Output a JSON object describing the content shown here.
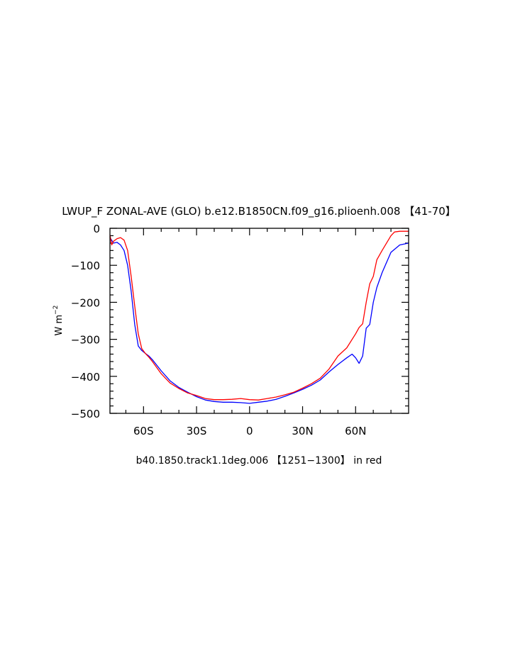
{
  "chart_data": {
    "type": "line",
    "title": "LWUP_F ZONAL-AVE (GLO) b.e12.B1850CN.f09_g16.plioenh.008 【41-70】",
    "ylabel_main": "W m",
    "ylabel_exp": "−2",
    "caption": "b40.1850.track1.1deg.006 【1251−1300】 in red",
    "xlim": [
      -79,
      90
    ],
    "ylim": [
      -500,
      0
    ],
    "x_ticks": [
      {
        "value": -60,
        "label": "60S"
      },
      {
        "value": -30,
        "label": "30S"
      },
      {
        "value": 0,
        "label": "0"
      },
      {
        "value": 30,
        "label": "30N"
      },
      {
        "value": 60,
        "label": "60N"
      }
    ],
    "y_ticks": [
      {
        "value": 0,
        "label": "0"
      },
      {
        "value": -100,
        "label": "−100"
      },
      {
        "value": -200,
        "label": "−200"
      },
      {
        "value": -300,
        "label": "−300"
      },
      {
        "value": -400,
        "label": "−400"
      },
      {
        "value": -500,
        "label": "−500"
      }
    ],
    "series": [
      {
        "color": "#0000ff",
        "x": [
          -79,
          -77,
          -75,
          -73,
          -71,
          -69,
          -67,
          -65,
          -63,
          -61,
          -59,
          -57,
          -55,
          -50,
          -45,
          -40,
          -35,
          -30,
          -25,
          -20,
          -15,
          -10,
          -5,
          0,
          5,
          10,
          15,
          20,
          25,
          30,
          35,
          40,
          45,
          50,
          55,
          58,
          60,
          62,
          64,
          66,
          68,
          70,
          72,
          75,
          80,
          85,
          90
        ],
        "y": [
          -25,
          -40,
          -38,
          -45,
          -60,
          -100,
          -170,
          -260,
          -318,
          -330,
          -338,
          -345,
          -355,
          -385,
          -412,
          -430,
          -443,
          -455,
          -464,
          -468,
          -470,
          -470,
          -471,
          -473,
          -470,
          -467,
          -462,
          -454,
          -445,
          -435,
          -424,
          -410,
          -388,
          -368,
          -350,
          -340,
          -350,
          -365,
          -345,
          -270,
          -260,
          -200,
          -160,
          -120,
          -65,
          -45,
          -40
        ]
      },
      {
        "color": "#ff0000",
        "x": [
          -79,
          -78,
          -77,
          -75,
          -73,
          -71,
          -69,
          -67,
          -65,
          -63,
          -61,
          -59,
          -57,
          -55,
          -50,
          -45,
          -40,
          -35,
          -30,
          -25,
          -20,
          -15,
          -10,
          -5,
          0,
          5,
          10,
          15,
          20,
          25,
          30,
          35,
          40,
          45,
          50,
          55,
          60,
          62,
          64,
          66,
          68,
          70,
          72,
          75,
          80,
          82,
          85,
          90
        ],
        "y": [
          -18,
          -45,
          -35,
          -28,
          -25,
          -32,
          -60,
          -130,
          -210,
          -285,
          -325,
          -338,
          -348,
          -360,
          -393,
          -418,
          -433,
          -445,
          -452,
          -460,
          -463,
          -463,
          -462,
          -460,
          -463,
          -464,
          -460,
          -456,
          -450,
          -443,
          -432,
          -420,
          -405,
          -380,
          -345,
          -323,
          -285,
          -268,
          -258,
          -200,
          -150,
          -130,
          -85,
          -60,
          -20,
          -10,
          -8,
          -8
        ]
      }
    ],
    "grid": false
  }
}
